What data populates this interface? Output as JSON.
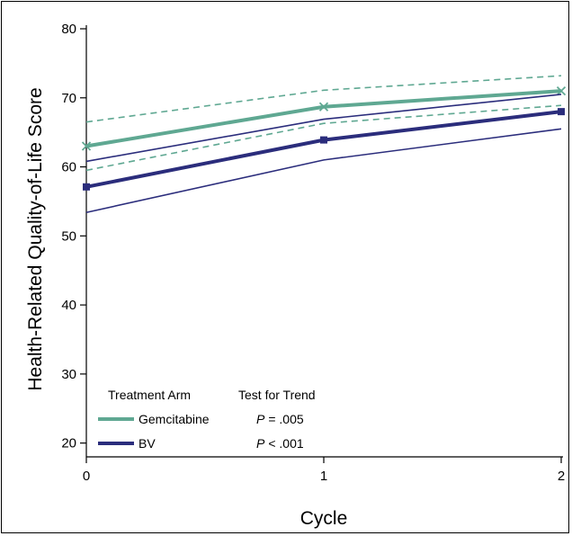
{
  "chart_data": {
    "type": "line",
    "title": "",
    "xlabel": "Cycle",
    "ylabel": "Health-Related Quality-of-Life Score",
    "x": [
      0,
      1,
      2
    ],
    "x_ticks": [
      "0",
      "1",
      "2"
    ],
    "y_ticks": [
      "20",
      "30",
      "40",
      "50",
      "60",
      "70",
      "80"
    ],
    "xlim": [
      0,
      2
    ],
    "ylim": [
      18,
      80
    ],
    "grid": false,
    "legend_position": "bottom-left",
    "series": [
      {
        "name": "Gemcitabine",
        "values": [
          63,
          68.7,
          71
        ],
        "ci_upper": [
          66.5,
          71.1,
          73.2
        ],
        "ci_lower": [
          59.5,
          66.3,
          68.9
        ],
        "color": "#5fa892",
        "marker": "x"
      },
      {
        "name": "BV",
        "values": [
          57.1,
          63.9,
          68
        ],
        "ci_upper": [
          60.8,
          66.9,
          70.5
        ],
        "ci_lower": [
          53.4,
          61,
          65.5
        ],
        "color": "#2b2d7c",
        "marker": "square"
      }
    ],
    "legend": {
      "header_arm": "Treatment Arm",
      "header_trend": "Test for Trend",
      "rows": [
        {
          "label": "Gemcitabine",
          "p_symbol": "P",
          "p_value": "= .005"
        },
        {
          "label": "BV",
          "p_symbol": "P",
          "p_value": "< .001"
        }
      ]
    }
  }
}
